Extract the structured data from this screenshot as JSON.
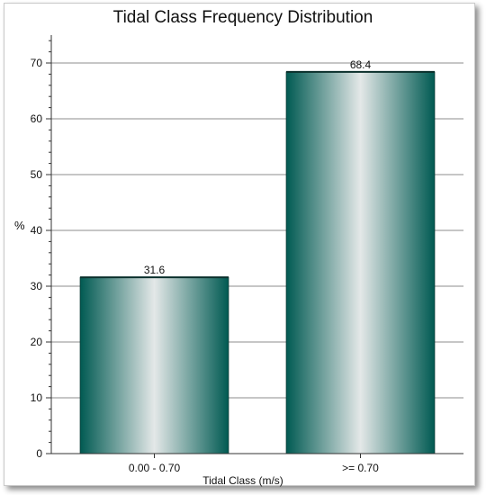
{
  "chart_data": {
    "type": "bar",
    "title": "Tidal Class Frequency Distribution",
    "xlabel": "Tidal Class (m/s)",
    "ylabel": "%",
    "categories": [
      "0.00 - 0.70",
      ">= 0.70"
    ],
    "values": [
      31.6,
      68.4
    ],
    "data_labels": [
      "31.6",
      "68.4"
    ],
    "ylim": [
      0,
      75
    ],
    "yticks": [
      0,
      10,
      20,
      30,
      40,
      50,
      60,
      70
    ],
    "grid": true,
    "legend": "none",
    "colors": {
      "bar_dark": "#005a52",
      "bar_light": "#e4e8e8",
      "grid": "#8c8c8c",
      "axis": "#333333"
    }
  }
}
